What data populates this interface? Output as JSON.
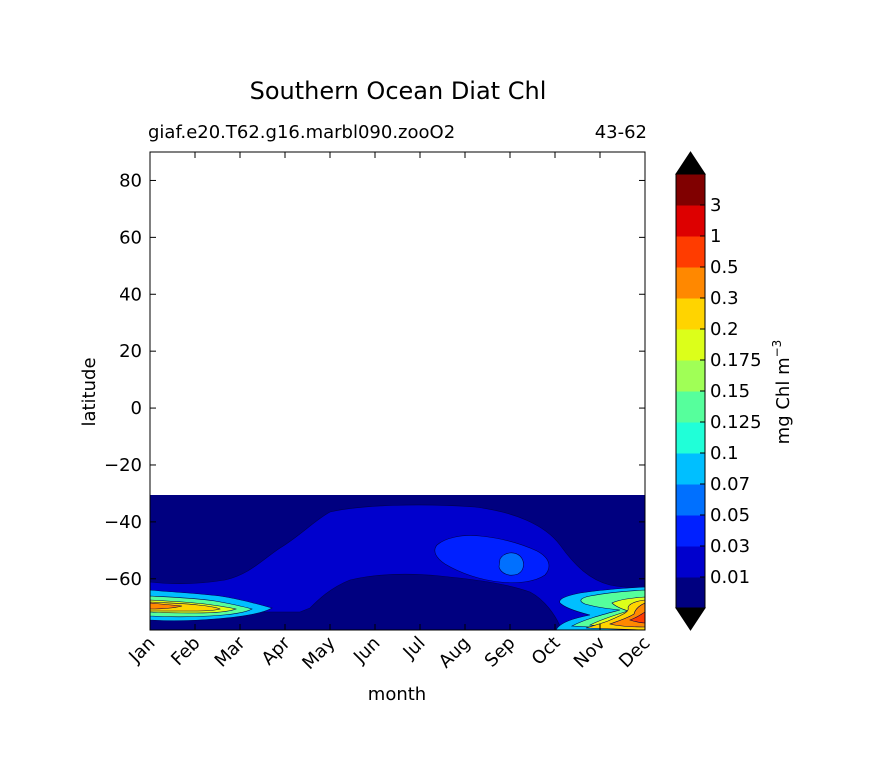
{
  "chart_data": {
    "type": "contourf",
    "title": "Southern Ocean Diat Chl",
    "subtitle_left": "giaf.e20.T62.g16.marbl090.zooO2",
    "subtitle_right": "43-62",
    "xlabel": "month",
    "ylabel": "latitude",
    "x_categories": [
      "Jan",
      "Feb",
      "Mar",
      "Apr",
      "May",
      "Jun",
      "Jul",
      "Aug",
      "Sep",
      "Oct",
      "Nov",
      "Dec"
    ],
    "ylim": [
      -78,
      90
    ],
    "yticks": [
      80,
      60,
      40,
      20,
      0,
      -20,
      -40,
      -60
    ],
    "ytick_labels": [
      "80",
      "60",
      "40",
      "20",
      "0",
      "−20",
      "−40",
      "−60"
    ],
    "data_lat_max": -31,
    "grid": false,
    "colorbar": {
      "label": "mg Chl m",
      "label_superscript": "−3",
      "levels": [
        0.01,
        0.03,
        0.05,
        0.07,
        0.1,
        0.125,
        0.15,
        0.175,
        0.2,
        0.3,
        0.5,
        1,
        3
      ],
      "level_labels": [
        "0.01",
        "0.03",
        "0.05",
        "0.07",
        "0.1",
        "0.125",
        "0.15",
        "0.175",
        "0.2",
        "0.3",
        "0.5",
        "1",
        "3"
      ],
      "colors": [
        "#000080",
        "#0000cd",
        "#0020ff",
        "#0070ff",
        "#00bfff",
        "#20ffd8",
        "#56ff9c",
        "#a0ff56",
        "#dcff1a",
        "#ffd400",
        "#ff8800",
        "#ff3c00",
        "#dd0000",
        "#800000"
      ],
      "extend": "both",
      "extend_min_color": "#000000",
      "extend_max_color": "#000000"
    }
  }
}
